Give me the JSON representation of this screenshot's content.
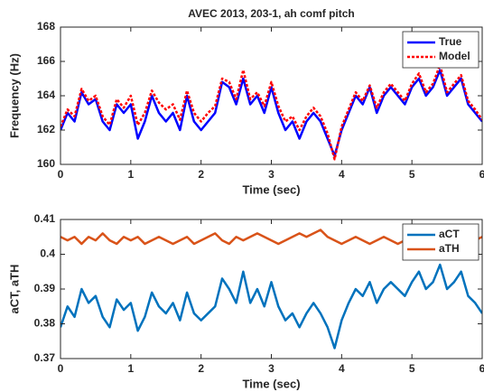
{
  "chart_data": [
    {
      "type": "line",
      "title": "AVEC 2013, 203-1, ah comf pitch",
      "xlabel": "Time (sec)",
      "ylabel": "Frequency (Hz)",
      "x": [
        0,
        0.1,
        0.2,
        0.3,
        0.4,
        0.5,
        0.6,
        0.7,
        0.8,
        0.9,
        1,
        1.1,
        1.2,
        1.3,
        1.4,
        1.5,
        1.6,
        1.7,
        1.8,
        1.9,
        2,
        2.1,
        2.2,
        2.3,
        2.4,
        2.5,
        2.6,
        2.7,
        2.8,
        2.9,
        3,
        3.1,
        3.2,
        3.3,
        3.4,
        3.5,
        3.6,
        3.7,
        3.8,
        3.9,
        4,
        4.1,
        4.2,
        4.3,
        4.4,
        4.5,
        4.6,
        4.7,
        4.8,
        4.9,
        5,
        5.1,
        5.2,
        5.3,
        5.4,
        5.5,
        5.6,
        5.7,
        5.8,
        5.9,
        6
      ],
      "series": [
        {
          "name": "True",
          "color": "#0000ff",
          "style": "solid",
          "values": [
            162,
            163,
            162.5,
            164.2,
            163.5,
            163.8,
            162.5,
            162,
            163.5,
            163,
            163.5,
            161.5,
            162.5,
            164,
            163,
            162.5,
            163,
            162,
            164,
            162.5,
            162,
            162.5,
            163,
            164.8,
            164.5,
            163.5,
            165,
            163.5,
            164,
            163,
            164.5,
            163,
            162,
            162.5,
            161.5,
            162.5,
            163,
            162.5,
            161.5,
            160.5,
            162,
            163,
            164,
            163.5,
            164.5,
            163,
            164,
            164.5,
            164,
            163.5,
            164.5,
            165,
            164,
            164.5,
            165.5,
            164,
            164.5,
            165,
            163.5,
            163,
            162.5
          ]
        },
        {
          "name": "Model",
          "color": "#ff0000",
          "style": "dashed",
          "values": [
            162.2,
            163.2,
            162.8,
            164.4,
            163.7,
            164,
            162.8,
            162.3,
            163.8,
            163.3,
            164,
            162.3,
            163,
            164.3,
            163.6,
            163.2,
            163.5,
            162.6,
            164.3,
            163,
            162.5,
            163,
            163.4,
            165,
            164.8,
            163.8,
            165.5,
            163.8,
            164.2,
            163.4,
            164.8,
            163.4,
            162.5,
            162.8,
            162,
            162.8,
            163.3,
            162.8,
            161.8,
            160.3,
            162.2,
            163.2,
            164.2,
            163.7,
            164.6,
            163.3,
            164.2,
            164.7,
            164.2,
            163.7,
            164.7,
            165.3,
            164.2,
            164.7,
            165.8,
            164.2,
            164.7,
            165.2,
            163.7,
            163.2,
            162.6
          ]
        }
      ],
      "xlim": [
        0,
        6
      ],
      "xticks": [
        0,
        1,
        2,
        3,
        4,
        5,
        6
      ],
      "ylim": [
        160,
        168
      ],
      "yticks": [
        160,
        162,
        164,
        166,
        168
      ],
      "legend": "northeast"
    },
    {
      "type": "line",
      "xlabel": "Time (sec)",
      "ylabel": "aCT, aTH",
      "x": [
        0,
        0.1,
        0.2,
        0.3,
        0.4,
        0.5,
        0.6,
        0.7,
        0.8,
        0.9,
        1,
        1.1,
        1.2,
        1.3,
        1.4,
        1.5,
        1.6,
        1.7,
        1.8,
        1.9,
        2,
        2.1,
        2.2,
        2.3,
        2.4,
        2.5,
        2.6,
        2.7,
        2.8,
        2.9,
        3,
        3.1,
        3.2,
        3.3,
        3.4,
        3.5,
        3.6,
        3.7,
        3.8,
        3.9,
        4,
        4.1,
        4.2,
        4.3,
        4.4,
        4.5,
        4.6,
        4.7,
        4.8,
        4.9,
        5,
        5.1,
        5.2,
        5.3,
        5.4,
        5.5,
        5.6,
        5.7,
        5.8,
        5.9,
        6
      ],
      "series": [
        {
          "name": "aCT",
          "color": "#0072bd",
          "style": "solid",
          "values": [
            0.379,
            0.385,
            0.382,
            0.39,
            0.386,
            0.388,
            0.382,
            0.379,
            0.387,
            0.384,
            0.386,
            0.378,
            0.382,
            0.389,
            0.385,
            0.383,
            0.386,
            0.381,
            0.389,
            0.383,
            0.381,
            0.383,
            0.385,
            0.393,
            0.39,
            0.386,
            0.395,
            0.386,
            0.39,
            0.385,
            0.392,
            0.385,
            0.381,
            0.383,
            0.379,
            0.383,
            0.386,
            0.383,
            0.379,
            0.373,
            0.381,
            0.386,
            0.39,
            0.388,
            0.392,
            0.386,
            0.39,
            0.392,
            0.39,
            0.388,
            0.392,
            0.395,
            0.39,
            0.392,
            0.397,
            0.39,
            0.392,
            0.395,
            0.388,
            0.386,
            0.383
          ]
        },
        {
          "name": "aTH",
          "color": "#d95319",
          "style": "solid",
          "values": [
            0.405,
            0.404,
            0.405,
            0.403,
            0.405,
            0.404,
            0.406,
            0.404,
            0.403,
            0.405,
            0.404,
            0.405,
            0.403,
            0.404,
            0.405,
            0.404,
            0.403,
            0.404,
            0.405,
            0.403,
            0.404,
            0.405,
            0.406,
            0.404,
            0.403,
            0.405,
            0.404,
            0.405,
            0.406,
            0.405,
            0.404,
            0.403,
            0.404,
            0.405,
            0.406,
            0.405,
            0.406,
            0.407,
            0.405,
            0.404,
            0.403,
            0.404,
            0.405,
            0.404,
            0.403,
            0.404,
            0.405,
            0.404,
            0.403,
            0.404,
            0.405,
            0.404,
            0.405,
            0.404,
            0.403,
            0.404,
            0.405,
            0.404,
            0.403,
            0.404,
            0.405
          ]
        }
      ],
      "xlim": [
        0,
        6
      ],
      "xticks": [
        0,
        1,
        2,
        3,
        4,
        5,
        6
      ],
      "ylim": [
        0.37,
        0.41
      ],
      "yticks": [
        0.37,
        0.38,
        0.39,
        0.4,
        0.41
      ],
      "legend": "northeast"
    }
  ]
}
